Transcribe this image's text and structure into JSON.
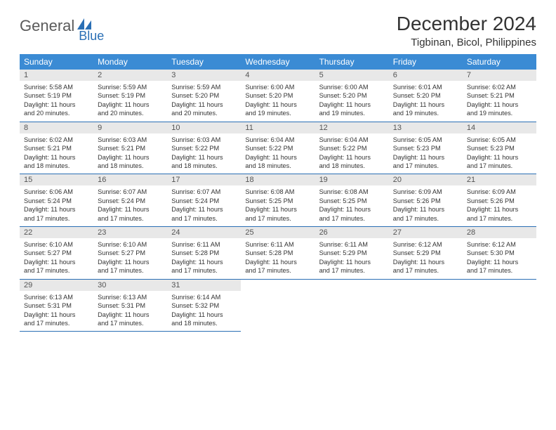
{
  "logo": {
    "text1": "General",
    "text2": "Blue"
  },
  "title": "December 2024",
  "location": "Tigbinan, Bicol, Philippines",
  "colors": {
    "header_bg": "#3b8bd4",
    "header_text": "#ffffff",
    "daynum_bg": "#e8e8e8",
    "rule": "#2a6fb5",
    "logo_gray": "#5a5a5a",
    "logo_blue": "#2a6fb5"
  },
  "weekdays": [
    "Sunday",
    "Monday",
    "Tuesday",
    "Wednesday",
    "Thursday",
    "Friday",
    "Saturday"
  ],
  "days": [
    {
      "n": 1,
      "sr": "5:58 AM",
      "ss": "5:19 PM",
      "dl": "11 hours and 20 minutes."
    },
    {
      "n": 2,
      "sr": "5:59 AM",
      "ss": "5:19 PM",
      "dl": "11 hours and 20 minutes."
    },
    {
      "n": 3,
      "sr": "5:59 AM",
      "ss": "5:20 PM",
      "dl": "11 hours and 20 minutes."
    },
    {
      "n": 4,
      "sr": "6:00 AM",
      "ss": "5:20 PM",
      "dl": "11 hours and 19 minutes."
    },
    {
      "n": 5,
      "sr": "6:00 AM",
      "ss": "5:20 PM",
      "dl": "11 hours and 19 minutes."
    },
    {
      "n": 6,
      "sr": "6:01 AM",
      "ss": "5:20 PM",
      "dl": "11 hours and 19 minutes."
    },
    {
      "n": 7,
      "sr": "6:02 AM",
      "ss": "5:21 PM",
      "dl": "11 hours and 19 minutes."
    },
    {
      "n": 8,
      "sr": "6:02 AM",
      "ss": "5:21 PM",
      "dl": "11 hours and 18 minutes."
    },
    {
      "n": 9,
      "sr": "6:03 AM",
      "ss": "5:21 PM",
      "dl": "11 hours and 18 minutes."
    },
    {
      "n": 10,
      "sr": "6:03 AM",
      "ss": "5:22 PM",
      "dl": "11 hours and 18 minutes."
    },
    {
      "n": 11,
      "sr": "6:04 AM",
      "ss": "5:22 PM",
      "dl": "11 hours and 18 minutes."
    },
    {
      "n": 12,
      "sr": "6:04 AM",
      "ss": "5:22 PM",
      "dl": "11 hours and 18 minutes."
    },
    {
      "n": 13,
      "sr": "6:05 AM",
      "ss": "5:23 PM",
      "dl": "11 hours and 17 minutes."
    },
    {
      "n": 14,
      "sr": "6:05 AM",
      "ss": "5:23 PM",
      "dl": "11 hours and 17 minutes."
    },
    {
      "n": 15,
      "sr": "6:06 AM",
      "ss": "5:24 PM",
      "dl": "11 hours and 17 minutes."
    },
    {
      "n": 16,
      "sr": "6:07 AM",
      "ss": "5:24 PM",
      "dl": "11 hours and 17 minutes."
    },
    {
      "n": 17,
      "sr": "6:07 AM",
      "ss": "5:24 PM",
      "dl": "11 hours and 17 minutes."
    },
    {
      "n": 18,
      "sr": "6:08 AM",
      "ss": "5:25 PM",
      "dl": "11 hours and 17 minutes."
    },
    {
      "n": 19,
      "sr": "6:08 AM",
      "ss": "5:25 PM",
      "dl": "11 hours and 17 minutes."
    },
    {
      "n": 20,
      "sr": "6:09 AM",
      "ss": "5:26 PM",
      "dl": "11 hours and 17 minutes."
    },
    {
      "n": 21,
      "sr": "6:09 AM",
      "ss": "5:26 PM",
      "dl": "11 hours and 17 minutes."
    },
    {
      "n": 22,
      "sr": "6:10 AM",
      "ss": "5:27 PM",
      "dl": "11 hours and 17 minutes."
    },
    {
      "n": 23,
      "sr": "6:10 AM",
      "ss": "5:27 PM",
      "dl": "11 hours and 17 minutes."
    },
    {
      "n": 24,
      "sr": "6:11 AM",
      "ss": "5:28 PM",
      "dl": "11 hours and 17 minutes."
    },
    {
      "n": 25,
      "sr": "6:11 AM",
      "ss": "5:28 PM",
      "dl": "11 hours and 17 minutes."
    },
    {
      "n": 26,
      "sr": "6:11 AM",
      "ss": "5:29 PM",
      "dl": "11 hours and 17 minutes."
    },
    {
      "n": 27,
      "sr": "6:12 AM",
      "ss": "5:29 PM",
      "dl": "11 hours and 17 minutes."
    },
    {
      "n": 28,
      "sr": "6:12 AM",
      "ss": "5:30 PM",
      "dl": "11 hours and 17 minutes."
    },
    {
      "n": 29,
      "sr": "6:13 AM",
      "ss": "5:31 PM",
      "dl": "11 hours and 17 minutes."
    },
    {
      "n": 30,
      "sr": "6:13 AM",
      "ss": "5:31 PM",
      "dl": "11 hours and 17 minutes."
    },
    {
      "n": 31,
      "sr": "6:14 AM",
      "ss": "5:32 PM",
      "dl": "11 hours and 18 minutes."
    }
  ],
  "labels": {
    "sunrise": "Sunrise:",
    "sunset": "Sunset:",
    "daylight": "Daylight:"
  },
  "layout": {
    "start_weekday": 0,
    "total_cells": 35
  }
}
